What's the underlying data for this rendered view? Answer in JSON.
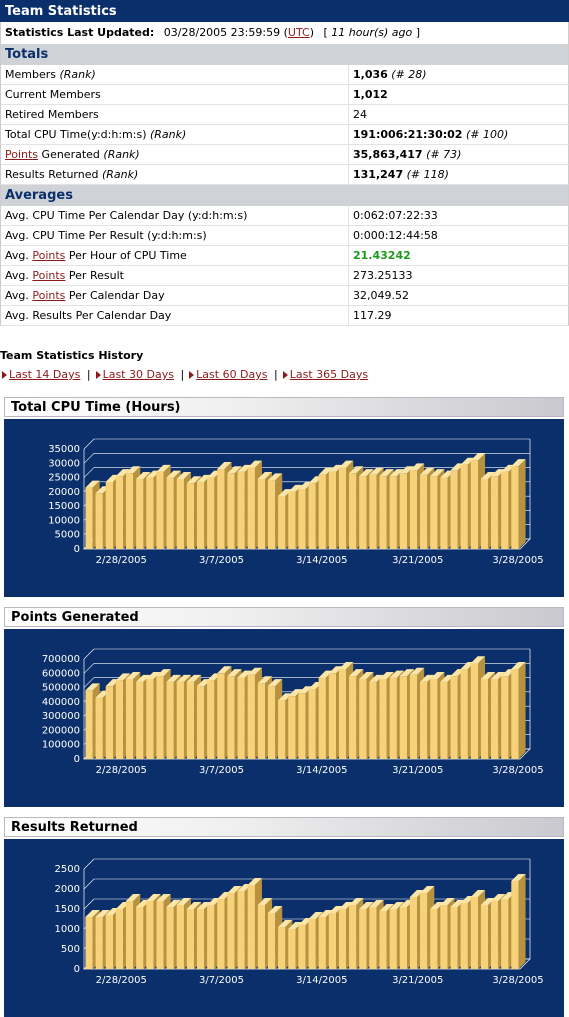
{
  "team": {
    "title": "Team Statistics",
    "updated_label": "Statistics Last Updated:",
    "updated_value": "03/28/2005 23:59:59",
    "tz": "UTC",
    "ago": "11 hour(s) ago"
  },
  "totals": {
    "heading": "Totals",
    "rows": [
      {
        "label": "Members",
        "rank_label": "(Rank)",
        "value": "1,036",
        "rank": "(# 28)"
      },
      {
        "label": "Current Members",
        "value": "1,012"
      },
      {
        "label": "Retired Members",
        "value": "24"
      },
      {
        "label": "Total CPU Time(y:d:h:m:s)",
        "rank_label": "(Rank)",
        "value": "191:006:21:30:02",
        "rank": "(# 100)"
      },
      {
        "label_link": "Points",
        "label": " Generated",
        "rank_label": "(Rank)",
        "value": "35,863,417",
        "rank": "(# 73)"
      },
      {
        "label": "Results Returned",
        "rank_label": "(Rank)",
        "value": "131,247",
        "rank": "(# 118)"
      }
    ]
  },
  "averages": {
    "heading": "Averages",
    "rows": [
      {
        "label": "Avg. CPU Time Per Calendar Day (y:d:h:m:s)",
        "value": "0:062:07:22:33"
      },
      {
        "label": "Avg. CPU Time Per Result (y:d:h:m:s)",
        "value": "0:000:12:44:58"
      },
      {
        "label_pre": "Avg. ",
        "label_link": "Points",
        "label": " Per Hour of CPU Time",
        "value": "21.43242",
        "highlight": true
      },
      {
        "label_pre": "Avg. ",
        "label_link": "Points",
        "label": " Per Result",
        "value": "273.25133"
      },
      {
        "label_pre": "Avg. ",
        "label_link": "Points",
        "label": " Per Calendar Day",
        "value": "32,049.52"
      },
      {
        "label": "Avg. Results Per Calendar Day",
        "value": "117.29"
      }
    ]
  },
  "history": {
    "title": "Team Statistics History",
    "ranges": [
      "Last 14 Days",
      "Last 30 Days",
      "Last 60 Days",
      "Last 365 Days"
    ]
  },
  "colors": {
    "navy": "#0a2f6a",
    "bar_front": "#f7d27a",
    "bar_top": "#fbe6a8",
    "bar_side": "#b8923c",
    "grid": "#ffffff"
  },
  "chart_data": [
    {
      "type": "bar",
      "title": "Total CPU Time (Hours)",
      "x_tick_labels": [
        "2/28/2005",
        "3/7/2005",
        "3/14/2005",
        "3/21/2005",
        "3/28/2005"
      ],
      "y_ticks": [
        0,
        5000,
        10000,
        15000,
        20000,
        25000,
        30000,
        35000
      ],
      "ylim": [
        0,
        35000
      ],
      "values": [
        21500,
        19500,
        23500,
        25500,
        26500,
        24500,
        25000,
        27000,
        25000,
        24500,
        23000,
        23500,
        25000,
        28000,
        26500,
        27000,
        28500,
        24500,
        24000,
        18500,
        20000,
        21000,
        23000,
        26000,
        27000,
        28500,
        26500,
        25500,
        26000,
        25500,
        25500,
        26500,
        27500,
        26000,
        25500,
        25000,
        27500,
        29500,
        31000,
        24500,
        25500,
        27000,
        29000
      ]
    },
    {
      "type": "bar",
      "title": "Points Generated",
      "x_tick_labels": [
        "2/28/2005",
        "3/7/2005",
        "3/14/2005",
        "3/21/2005",
        "3/28/2005"
      ],
      "y_ticks": [
        0,
        100000,
        200000,
        300000,
        400000,
        500000,
        600000,
        700000
      ],
      "ylim": [
        0,
        700000
      ],
      "values": [
        480000,
        430000,
        510000,
        550000,
        560000,
        540000,
        560000,
        580000,
        540000,
        540000,
        540000,
        510000,
        550000,
        600000,
        580000,
        570000,
        590000,
        530000,
        510000,
        410000,
        440000,
        460000,
        490000,
        570000,
        600000,
        630000,
        580000,
        560000,
        540000,
        560000,
        570000,
        580000,
        590000,
        540000,
        560000,
        540000,
        580000,
        630000,
        670000,
        560000,
        560000,
        580000,
        630000
      ]
    },
    {
      "type": "bar",
      "title": "Results Returned",
      "x_tick_labels": [
        "2/28/2005",
        "3/7/2005",
        "3/14/2005",
        "3/21/2005",
        "3/28/2005"
      ],
      "y_ticks": [
        0,
        500,
        1000,
        1500,
        2000,
        2500
      ],
      "ylim": [
        0,
        2500
      ],
      "values": [
        1300,
        1300,
        1350,
        1500,
        1700,
        1550,
        1700,
        1700,
        1550,
        1600,
        1500,
        1500,
        1600,
        1750,
        1900,
        1950,
        2100,
        1600,
        1400,
        1050,
        1000,
        1100,
        1250,
        1300,
        1400,
        1500,
        1600,
        1500,
        1550,
        1450,
        1500,
        1550,
        1800,
        1900,
        1500,
        1600,
        1550,
        1650,
        1800,
        1600,
        1700,
        1750,
        2200
      ]
    }
  ]
}
